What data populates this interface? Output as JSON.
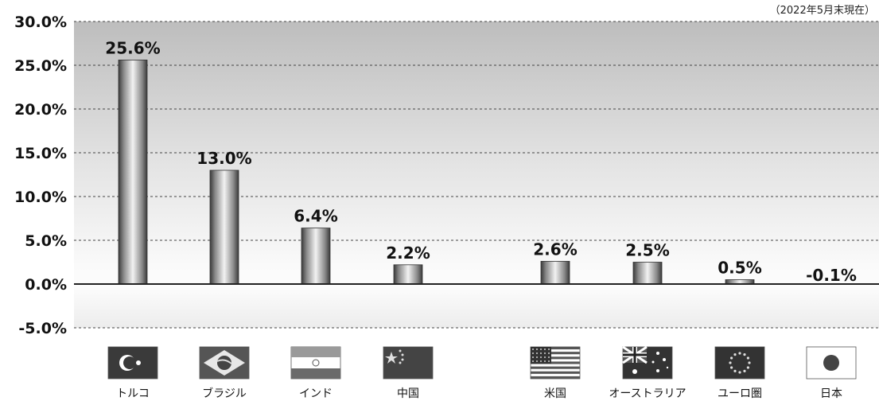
{
  "note": "（2022年5月末現在）",
  "chart_data": {
    "type": "bar",
    "title": "",
    "xlabel": "",
    "ylabel": "",
    "ylim": [
      -5,
      30
    ],
    "yticks": [
      "30.0%",
      "25.0%",
      "20.0%",
      "15.0%",
      "10.0%",
      "5.0%",
      "0.0%",
      "-5.0%"
    ],
    "ytick_values": [
      30,
      25,
      20,
      15,
      10,
      5,
      0,
      -5
    ],
    "grid": true,
    "categories": [
      "トルコ",
      "ブラジル",
      "インド",
      "中国",
      "米国",
      "オーストラリア",
      "ユーロ圏",
      "日本"
    ],
    "values": [
      25.6,
      13.0,
      6.4,
      2.2,
      2.6,
      2.5,
      0.5,
      -0.1
    ],
    "data_labels": [
      "25.6%",
      "13.0%",
      "6.4%",
      "2.2%",
      "2.6%",
      "2.5%",
      "0.5%",
      "-0.1%"
    ],
    "flags": [
      "turkey-flag-icon",
      "brazil-flag-icon",
      "india-flag-icon",
      "china-flag-icon",
      "usa-flag-icon",
      "australia-flag-icon",
      "eu-flag-icon",
      "japan-flag-icon"
    ]
  }
}
